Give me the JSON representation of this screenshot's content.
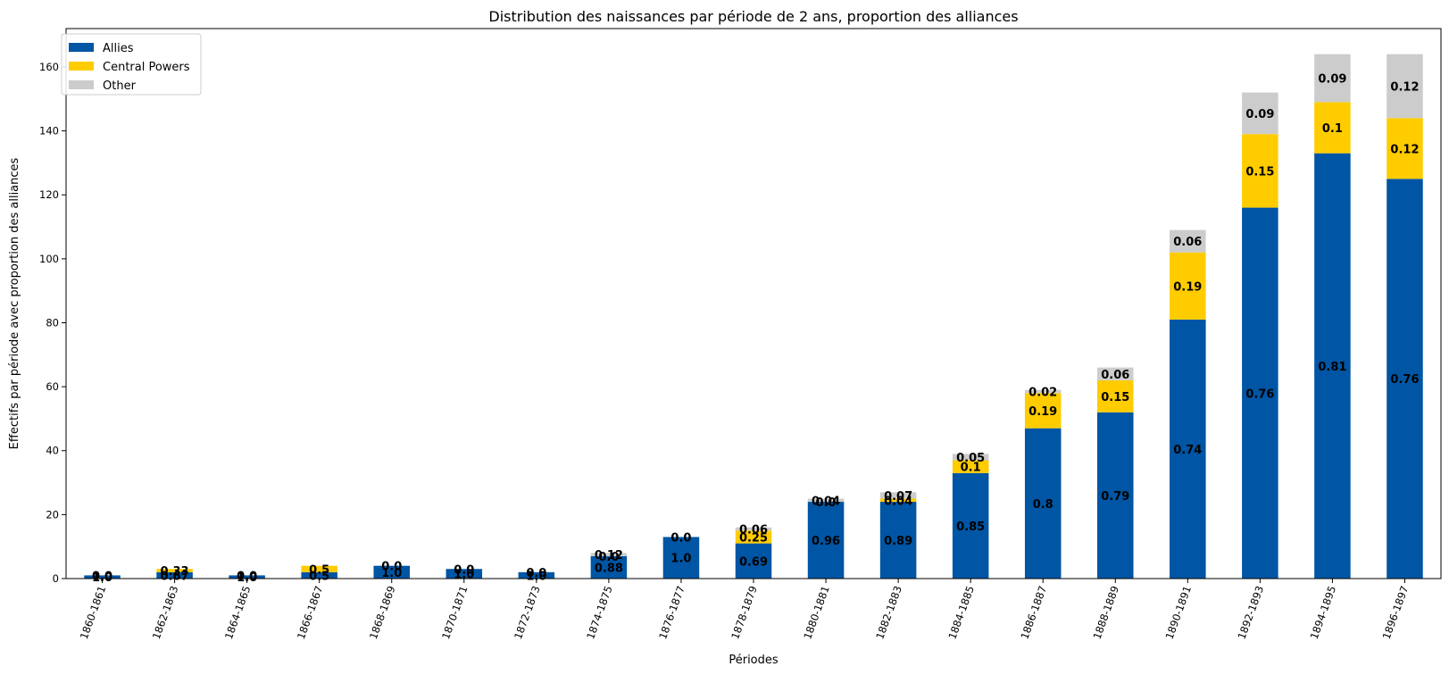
{
  "chart_data": {
    "type": "bar",
    "stacked": true,
    "title": "Distribution des naissances par période de 2 ans, proportion des alliances",
    "xlabel": "Périodes",
    "ylabel": "Effectifs par période avec proportion des alliances",
    "ylim": [
      0,
      172
    ],
    "yticks": [
      0,
      20,
      40,
      60,
      80,
      100,
      120,
      140,
      160
    ],
    "grid": false,
    "legend_position": "top-left",
    "categories": [
      "1860-1861",
      "1862-1863",
      "1864-1865",
      "1866-1867",
      "1868-1869",
      "1870-1871",
      "1872-1873",
      "1874-1875",
      "1876-1877",
      "1878-1879",
      "1880-1881",
      "1882-1883",
      "1884-1885",
      "1886-1887",
      "1888-1889",
      "1890-1891",
      "1892-1893",
      "1894-1895",
      "1896-1897"
    ],
    "series": [
      {
        "name": "Allies",
        "color": "#0055a4",
        "values": [
          1,
          2,
          1,
          2,
          4,
          3,
          2,
          7,
          13,
          11,
          24,
          24,
          33,
          47,
          52,
          81,
          116,
          133,
          125
        ],
        "labels": [
          "1.0",
          "0.67",
          "1.0",
          "0.5",
          "1.0",
          "1.0",
          "1.0",
          "0.88",
          "1.0",
          "0.69",
          "0.96",
          "0.89",
          "0.85",
          "0.8",
          "0.79",
          "0.74",
          "0.76",
          "0.81",
          "0.76"
        ]
      },
      {
        "name": "Central Powers",
        "color": "#ffcc00",
        "values": [
          0,
          1,
          0,
          2,
          0,
          0,
          0,
          0,
          0,
          4,
          0,
          1,
          4,
          11,
          10,
          21,
          23,
          16,
          19
        ],
        "labels": [
          "0.0",
          "0.33",
          "0.0",
          "0.5",
          "0.0",
          "0.0",
          "0.0",
          "0.0",
          "0.0",
          "0.25",
          "0.0",
          "0.04",
          "0.1",
          "0.19",
          "0.15",
          "0.19",
          "0.15",
          "0.1",
          "0.12"
        ]
      },
      {
        "name": "Other",
        "color": "#cccccc",
        "values": [
          0,
          0,
          0,
          0,
          0,
          0,
          0,
          1,
          0,
          1,
          1,
          2,
          2,
          1,
          4,
          7,
          13,
          15,
          20
        ],
        "labels": [
          "",
          "",
          "",
          "",
          "",
          "",
          "",
          "0.12",
          "",
          "0.06",
          "0.04",
          "0.07",
          "0.05",
          "0.02",
          "0.06",
          "0.06",
          "0.09",
          "0.09",
          "0.12"
        ]
      }
    ]
  }
}
